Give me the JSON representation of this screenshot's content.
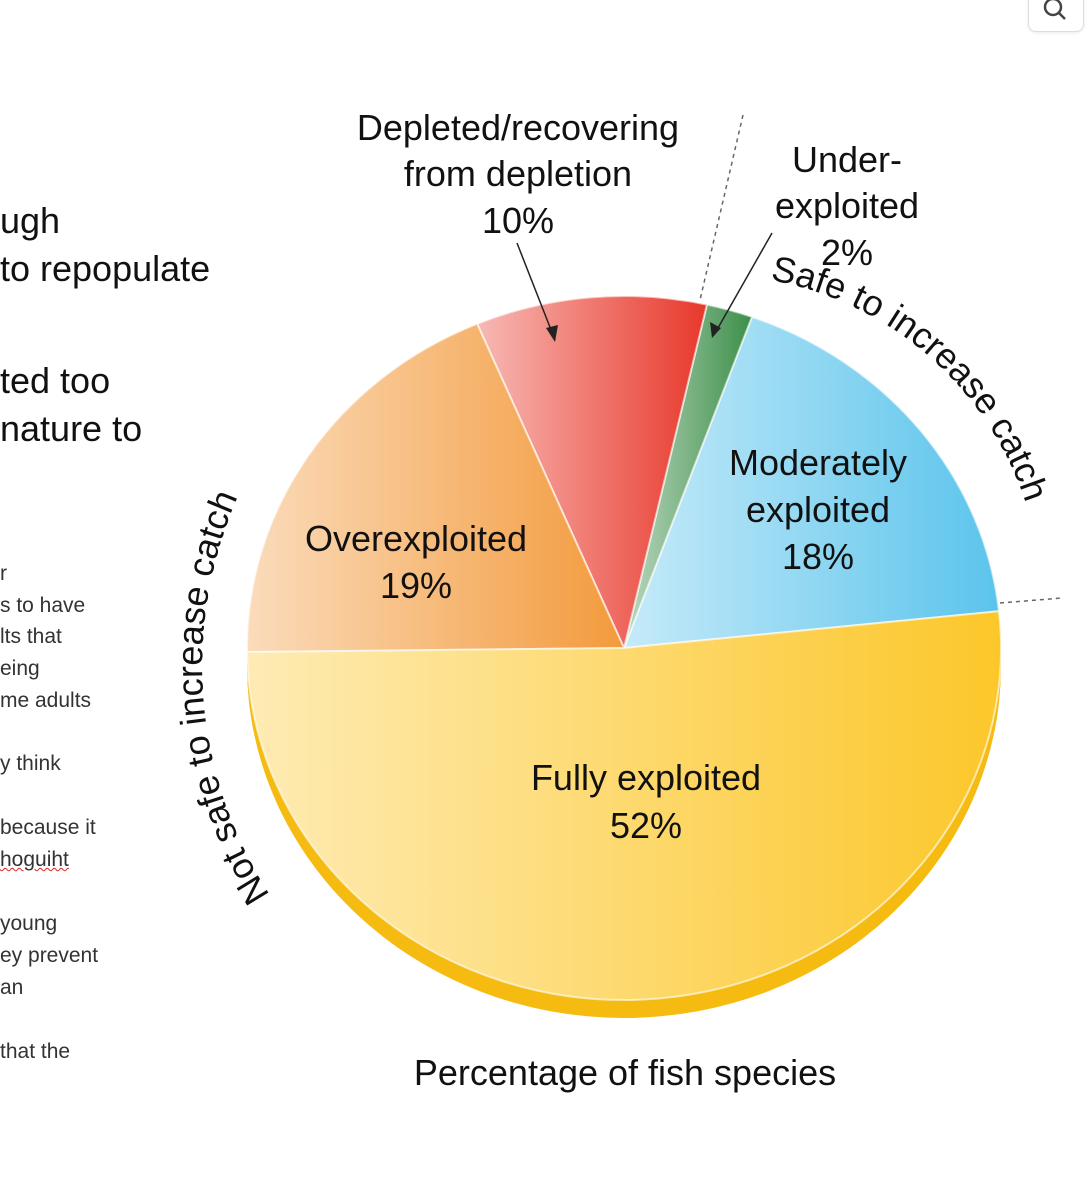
{
  "document": {
    "large_lines": [
      "ugh",
      "to repopulate",
      "ted too",
      "nature to"
    ],
    "small_lines": [
      "r",
      "s to have",
      "lts that",
      "eing",
      "me adults",
      "y think",
      " because it",
      "hoguiht",
      "young",
      "ey prevent",
      "an",
      "that the"
    ]
  },
  "toolbar": {
    "search_icon": "magnifier-icon"
  },
  "chart_data": {
    "type": "pie",
    "title": "Percentage of fish species",
    "slices": [
      {
        "name": "Moderately exploited",
        "label_lines": [
          "Moderately",
          "exploited",
          "18%"
        ],
        "value": 18,
        "color": "#5bc4ec"
      },
      {
        "name": "Under-exploited",
        "label_lines": [
          "Under-",
          "exploited",
          "2%"
        ],
        "value": 2,
        "color": "#3d8f4a"
      },
      {
        "name": "Depleted/recovering from depletion",
        "label_lines": [
          "Depleted/recovering",
          "from depletion",
          "10%"
        ],
        "value": 10,
        "color": "#e8382b"
      },
      {
        "name": "Overexploited",
        "label_lines": [
          "Overexploited",
          "19%"
        ],
        "value": 19,
        "color": "#f39a3c"
      },
      {
        "name": "Fully exploited",
        "label_lines": [
          "Fully exploited",
          "52%"
        ],
        "value": 52,
        "color": "#fcc72a"
      }
    ],
    "annotations": {
      "safe": "Safe to increase catch",
      "not_safe": "Not safe to increase catch"
    }
  }
}
